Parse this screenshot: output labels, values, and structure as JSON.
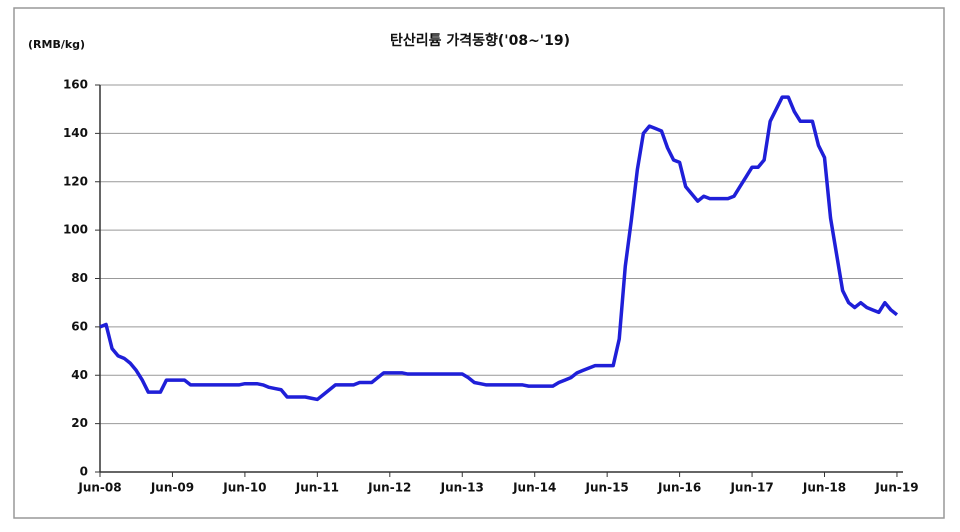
{
  "chart_data": {
    "type": "line",
    "title": "탄산리튬 가격동향('08~'19)",
    "y_label": "(RMB/kg)",
    "x": [
      "2008-06",
      "2008-07",
      "2008-08",
      "2008-09",
      "2008-10",
      "2008-11",
      "2008-12",
      "2009-01",
      "2009-02",
      "2009-03",
      "2009-04",
      "2009-05",
      "2009-06",
      "2009-07",
      "2009-08",
      "2009-09",
      "2009-10",
      "2009-11",
      "2009-12",
      "2010-01",
      "2010-02",
      "2010-03",
      "2010-04",
      "2010-05",
      "2010-06",
      "2010-07",
      "2010-08",
      "2010-09",
      "2010-10",
      "2010-11",
      "2010-12",
      "2011-01",
      "2011-02",
      "2011-03",
      "2011-04",
      "2011-05",
      "2011-06",
      "2011-07",
      "2011-08",
      "2011-09",
      "2011-10",
      "2011-11",
      "2011-12",
      "2012-01",
      "2012-02",
      "2012-03",
      "2012-04",
      "2012-05",
      "2012-06",
      "2012-07",
      "2012-08",
      "2012-09",
      "2012-10",
      "2012-11",
      "2012-12",
      "2013-01",
      "2013-02",
      "2013-03",
      "2013-04",
      "2013-05",
      "2013-06",
      "2013-07",
      "2013-08",
      "2013-09",
      "2013-10",
      "2013-11",
      "2013-12",
      "2014-01",
      "2014-02",
      "2014-03",
      "2014-04",
      "2014-05",
      "2014-06",
      "2014-07",
      "2014-08",
      "2014-09",
      "2014-10",
      "2014-11",
      "2014-12",
      "2015-01",
      "2015-02",
      "2015-03",
      "2015-04",
      "2015-05",
      "2015-06",
      "2015-07",
      "2015-08",
      "2015-09",
      "2015-10",
      "2015-11",
      "2015-12",
      "2016-01",
      "2016-02",
      "2016-03",
      "2016-04",
      "2016-05",
      "2016-06",
      "2016-07",
      "2016-08",
      "2016-09",
      "2016-10",
      "2016-11",
      "2016-12",
      "2017-01",
      "2017-02",
      "2017-03",
      "2017-04",
      "2017-05",
      "2017-06",
      "2017-07",
      "2017-08",
      "2017-09",
      "2017-10",
      "2017-11",
      "2017-12",
      "2018-01",
      "2018-02",
      "2018-03",
      "2018-04",
      "2018-05",
      "2018-06",
      "2018-07",
      "2018-08",
      "2018-09",
      "2018-10",
      "2018-11",
      "2018-12",
      "2019-01",
      "2019-02",
      "2019-03",
      "2019-04",
      "2019-05",
      "2019-06"
    ],
    "series": [
      {
        "color": "#1f1fd8",
        "values": [
          60,
          61,
          51,
          48,
          47,
          45,
          42,
          38,
          33,
          33,
          33,
          38,
          38,
          38,
          38,
          36,
          36,
          36,
          36,
          36,
          36,
          36,
          36,
          36,
          36.5,
          36.5,
          36.5,
          36,
          35,
          34.5,
          34,
          31,
          31,
          31,
          31,
          30.5,
          30,
          32,
          34,
          36,
          36,
          36,
          36,
          37,
          37,
          37,
          39,
          41,
          41,
          41,
          41,
          40.5,
          40.5,
          40.5,
          40.5,
          40.5,
          40.5,
          40.5,
          40.5,
          40.5,
          40.5,
          39,
          37,
          36.5,
          36,
          36,
          36,
          36,
          36,
          36,
          36,
          35.5,
          35.5,
          35.5,
          35.5,
          35.5,
          37,
          38,
          39,
          41,
          42,
          43,
          44,
          44,
          44,
          44,
          55,
          85,
          104,
          125,
          140,
          143,
          142,
          141,
          134,
          129,
          128,
          118,
          115,
          112,
          114,
          113,
          113,
          113,
          113,
          114,
          118,
          122,
          126,
          126,
          129,
          145,
          150,
          155,
          155,
          149,
          145,
          145,
          145,
          135,
          130,
          105,
          90,
          75,
          70,
          68,
          70,
          68,
          67,
          66,
          70,
          67,
          65
        ]
      }
    ],
    "xlim": [
      "2008-06",
      "2019-07"
    ],
    "xticks": [
      {
        "value": "2008-06",
        "label": "Jun-08"
      },
      {
        "value": "2009-06",
        "label": "Jun-09"
      },
      {
        "value": "2010-06",
        "label": "Jun-10"
      },
      {
        "value": "2011-06",
        "label": "Jun-11"
      },
      {
        "value": "2012-06",
        "label": "Jun-12"
      },
      {
        "value": "2013-06",
        "label": "Jun-13"
      },
      {
        "value": "2014-06",
        "label": "Jun-14"
      },
      {
        "value": "2015-06",
        "label": "Jun-15"
      },
      {
        "value": "2016-06",
        "label": "Jun-16"
      },
      {
        "value": "2017-06",
        "label": "Jun-17"
      },
      {
        "value": "2018-06",
        "label": "Jun-18"
      },
      {
        "value": "2019-06",
        "label": "Jun-19"
      }
    ],
    "ylim": [
      0,
      160
    ],
    "yticks": [
      0,
      20,
      40,
      60,
      80,
      100,
      120,
      140,
      160
    ],
    "grid": true
  }
}
